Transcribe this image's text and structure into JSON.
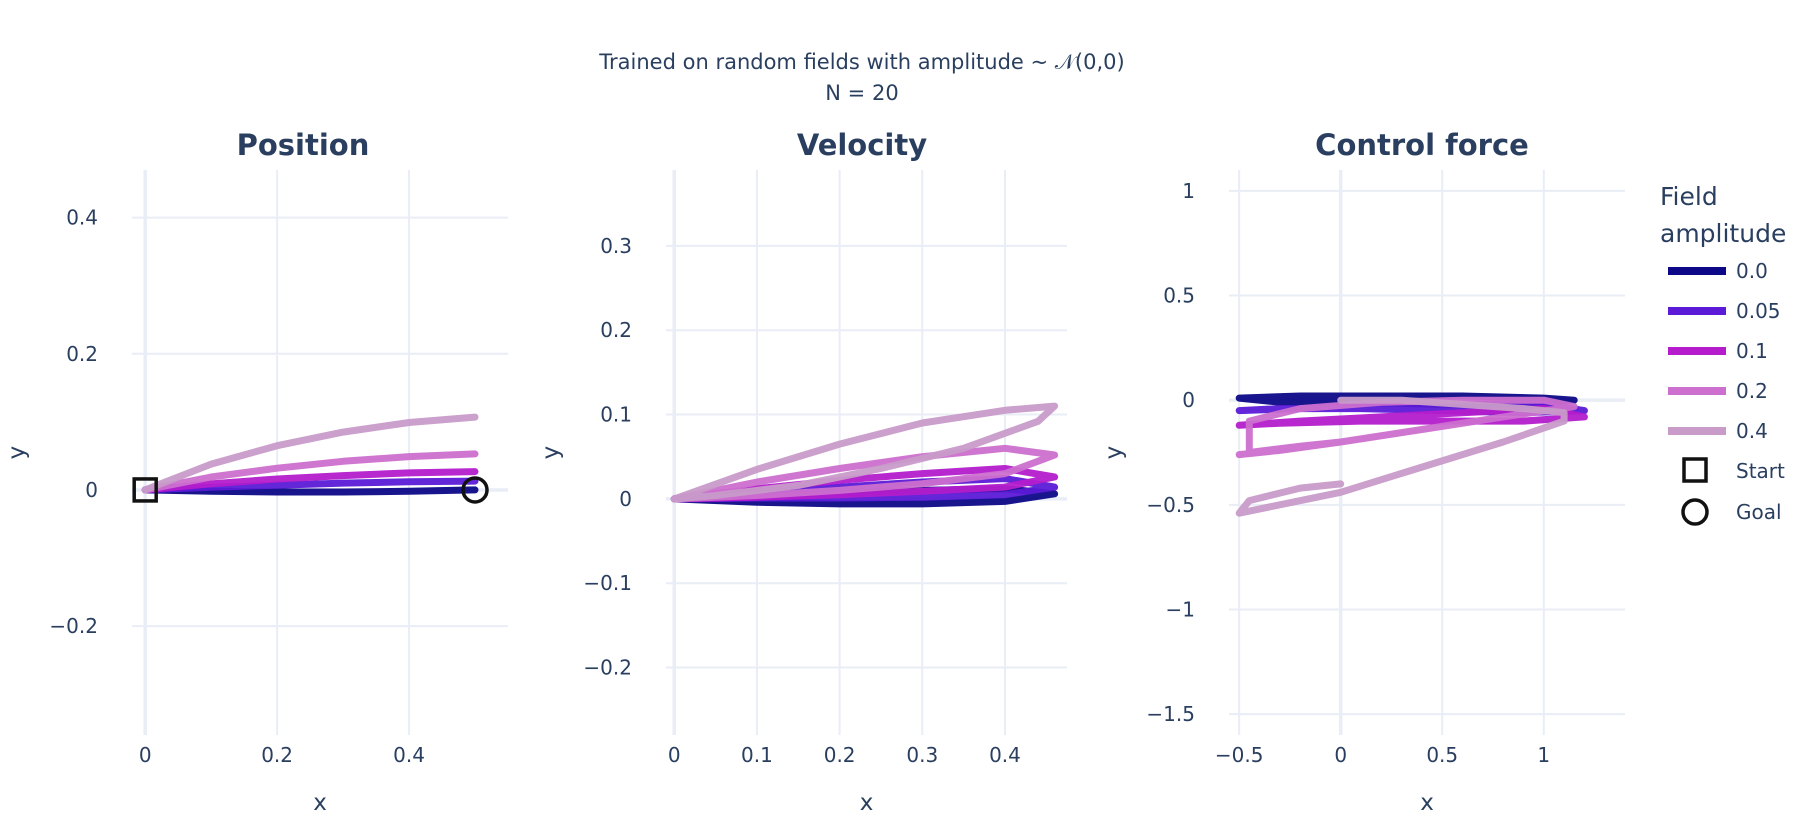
{
  "figure": {
    "title_line1": "Trained on random fields with amplitude ~ 𝒩(0,0)",
    "title_line2": "N = 20"
  },
  "legend": {
    "title_line1": "Field",
    "title_line2": "amplitude",
    "entries": [
      {
        "label": "0.0",
        "color": "#0d0887"
      },
      {
        "label": "0.05",
        "color": "#5b1ad6"
      },
      {
        "label": "0.1",
        "color": "#b41ccc"
      },
      {
        "label": "0.2",
        "color": "#cc6fcf"
      },
      {
        "label": "0.4",
        "color": "#c89bc9"
      }
    ],
    "start_label": "Start",
    "goal_label": "Goal"
  },
  "chart_data": [
    {
      "type": "line",
      "title": "Position",
      "xlabel": "x",
      "ylabel": "y",
      "xlim": [
        -0.02,
        0.55
      ],
      "ylim": [
        -0.36,
        0.47
      ],
      "xticks": [
        0,
        0.2,
        0.4
      ],
      "xtick_labels": [
        "0",
        "0.2",
        "0.4"
      ],
      "yticks": [
        -0.2,
        0,
        0.2,
        0.4
      ],
      "ytick_labels": [
        "−0.2",
        "0",
        "0.2",
        "0.4"
      ],
      "grid": true,
      "markers": {
        "start": [
          0,
          0
        ],
        "goal": [
          0.5,
          0
        ]
      },
      "series": [
        {
          "name": "0.0",
          "x": [
            0,
            0.1,
            0.2,
            0.3,
            0.4,
            0.5
          ],
          "y": [
            0,
            -0.002,
            -0.003,
            -0.003,
            -0.002,
            0
          ]
        },
        {
          "name": "0.05",
          "x": [
            0,
            0.1,
            0.2,
            0.3,
            0.4,
            0.5
          ],
          "y": [
            0,
            0.004,
            0.007,
            0.01,
            0.012,
            0.013
          ]
        },
        {
          "name": "0.1",
          "x": [
            0,
            0.1,
            0.2,
            0.3,
            0.4,
            0.5
          ],
          "y": [
            0,
            0.009,
            0.016,
            0.021,
            0.025,
            0.027
          ]
        },
        {
          "name": "0.2",
          "x": [
            0,
            0.1,
            0.2,
            0.3,
            0.4,
            0.5
          ],
          "y": [
            0,
            0.019,
            0.032,
            0.042,
            0.049,
            0.053
          ]
        },
        {
          "name": "0.4",
          "x": [
            0,
            0.1,
            0.2,
            0.3,
            0.4,
            0.5
          ],
          "y": [
            0,
            0.038,
            0.065,
            0.085,
            0.099,
            0.107
          ]
        }
      ]
    },
    {
      "type": "line",
      "title": "Velocity",
      "xlabel": "x",
      "ylabel": "y",
      "xlim": [
        -0.01,
        0.475
      ],
      "ylim": [
        -0.28,
        0.39
      ],
      "xticks": [
        0,
        0.1,
        0.2,
        0.3,
        0.4
      ],
      "xtick_labels": [
        "0",
        "0.1",
        "0.2",
        "0.3",
        "0.4"
      ],
      "yticks": [
        -0.2,
        -0.1,
        0,
        0.1,
        0.2,
        0.3
      ],
      "ytick_labels": [
        "−0.2",
        "−0.1",
        "0",
        "0.1",
        "0.2",
        "0.3"
      ],
      "grid": true,
      "series": [
        {
          "name": "0.0",
          "x": [
            0,
            0.1,
            0.2,
            0.3,
            0.4,
            0.46,
            0.4,
            0.3,
            0.2,
            0.1,
            0
          ],
          "y": [
            0,
            0.004,
            0.008,
            0.01,
            0.012,
            0.006,
            -0.003,
            -0.006,
            -0.006,
            -0.004,
            0
          ]
        },
        {
          "name": "0.05",
          "x": [
            0,
            0.1,
            0.2,
            0.3,
            0.4,
            0.46,
            0.4,
            0.3,
            0.2,
            0.1,
            0
          ],
          "y": [
            0,
            0.008,
            0.014,
            0.02,
            0.024,
            0.014,
            0.005,
            0.002,
            0.001,
            0.001,
            0
          ]
        },
        {
          "name": "0.1",
          "x": [
            0,
            0.1,
            0.2,
            0.3,
            0.4,
            0.46,
            0.4,
            0.3,
            0.2,
            0.1,
            0
          ],
          "y": [
            0,
            0.012,
            0.022,
            0.03,
            0.036,
            0.026,
            0.014,
            0.009,
            0.005,
            0.002,
            0
          ]
        },
        {
          "name": "0.2",
          "x": [
            0,
            0.1,
            0.2,
            0.3,
            0.4,
            0.46,
            0.4,
            0.3,
            0.2,
            0.1,
            0
          ],
          "y": [
            0,
            0.02,
            0.036,
            0.05,
            0.06,
            0.052,
            0.03,
            0.018,
            0.01,
            0.004,
            0
          ]
        },
        {
          "name": "0.4",
          "x": [
            0,
            0.1,
            0.2,
            0.3,
            0.4,
            0.46,
            0.44,
            0.35,
            0.25,
            0.15,
            0.05,
            0
          ],
          "y": [
            0,
            0.035,
            0.065,
            0.09,
            0.105,
            0.11,
            0.092,
            0.06,
            0.036,
            0.016,
            0.004,
            0
          ]
        }
      ]
    },
    {
      "type": "line",
      "title": "Control force",
      "xlabel": "x",
      "ylabel": "y",
      "xlim": [
        -0.55,
        1.4
      ],
      "ylim": [
        -1.6,
        1.1
      ],
      "xticks": [
        -0.5,
        0,
        0.5,
        1
      ],
      "xtick_labels": [
        "−0.5",
        "0",
        "0.5",
        "1"
      ],
      "yticks": [
        -1.5,
        -1,
        -0.5,
        0,
        0.5,
        1
      ],
      "ytick_labels": [
        "−1.5",
        "−1",
        "−0.5",
        "0",
        "0.5",
        "1"
      ],
      "grid": true,
      "series": [
        {
          "name": "0.0",
          "x": [
            -0.5,
            -0.2,
            0.2,
            0.6,
            1.0,
            1.15,
            0.9,
            0.5,
            0.1,
            -0.3,
            -0.5
          ],
          "y": [
            0.01,
            0.02,
            0.02,
            0.02,
            0.01,
            0,
            -0.02,
            -0.02,
            -0.01,
            -0.01,
            0.01
          ]
        },
        {
          "name": "0.05",
          "x": [
            -0.5,
            -0.2,
            0.2,
            0.6,
            1.0,
            1.2,
            0.9,
            0.5,
            0.1,
            -0.3,
            -0.5
          ],
          "y": [
            -0.05,
            -0.04,
            -0.03,
            -0.02,
            -0.02,
            -0.05,
            -0.06,
            -0.05,
            -0.04,
            -0.04,
            -0.05
          ]
        },
        {
          "name": "0.1",
          "x": [
            -0.5,
            -0.2,
            0.2,
            0.6,
            1.0,
            1.2,
            0.9,
            0.5,
            0.1,
            -0.3,
            -0.5
          ],
          "y": [
            -0.12,
            -0.1,
            -0.08,
            -0.06,
            -0.04,
            -0.08,
            -0.1,
            -0.1,
            -0.1,
            -0.11,
            -0.12
          ]
        },
        {
          "name": "0.2",
          "x": [
            -0.5,
            -0.3,
            0,
            0.4,
            0.8,
            1.15,
            1.0,
            0.6,
            0.2,
            -0.2,
            -0.45,
            -0.45,
            -0.2,
            0
          ],
          "y": [
            -0.26,
            -0.24,
            -0.2,
            -0.14,
            -0.08,
            -0.03,
            0,
            0,
            -0.01,
            -0.04,
            -0.1,
            -0.25,
            -0.22,
            -0.2
          ]
        },
        {
          "name": "0.4",
          "x": [
            0,
            0.3,
            0.6,
            0.9,
            1.1,
            1.1,
            0.8,
            0.4,
            0,
            -0.3,
            -0.5,
            -0.45,
            -0.2,
            0
          ],
          "y": [
            0,
            0,
            -0.02,
            -0.04,
            -0.06,
            -0.1,
            -0.2,
            -0.32,
            -0.44,
            -0.5,
            -0.54,
            -0.48,
            -0.42,
            -0.4
          ]
        }
      ]
    }
  ]
}
